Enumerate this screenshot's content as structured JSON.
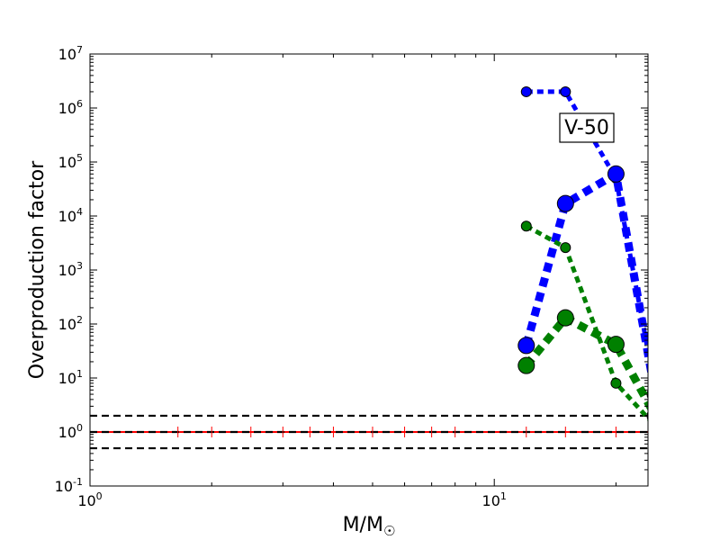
{
  "chart_data": {
    "type": "line",
    "x_scale": "log",
    "y_scale": "log",
    "xlim": [
      1,
      24
    ],
    "ylim": [
      0.1,
      10000000
    ],
    "xlabel": "M/M",
    "xlabel_sub": "☉",
    "ylabel": "Overproduction factor",
    "x_ticks": [
      {
        "value": 1,
        "base": "10",
        "exp": "0"
      },
      {
        "value": 10,
        "base": "10",
        "exp": "1"
      }
    ],
    "y_ticks": [
      {
        "value": 0.1,
        "base": "10",
        "exp": "-1"
      },
      {
        "value": 1,
        "base": "10",
        "exp": "0"
      },
      {
        "value": 10,
        "base": "10",
        "exp": "1"
      },
      {
        "value": 100,
        "base": "10",
        "exp": "2"
      },
      {
        "value": 1000,
        "base": "10",
        "exp": "3"
      },
      {
        "value": 10000,
        "base": "10",
        "exp": "4"
      },
      {
        "value": 100000,
        "base": "10",
        "exp": "5"
      },
      {
        "value": 1000000,
        "base": "10",
        "exp": "6"
      },
      {
        "value": 10000000,
        "base": "10",
        "exp": "7"
      }
    ],
    "annotation": "V-50",
    "reference_lines": [
      {
        "y": 2,
        "color": "#000000",
        "dash": "dashed"
      },
      {
        "y": 1,
        "color": "#ff0000",
        "dash": "solid"
      },
      {
        "y": 1,
        "color": "#000000",
        "dash": "dashed"
      },
      {
        "y": 0.5,
        "color": "#000000",
        "dash": "dashed"
      }
    ],
    "red_markers_x": [
      1.65,
      2,
      2.5,
      3,
      3.5,
      4,
      5,
      6,
      7,
      8,
      12,
      15,
      20
    ],
    "series": [
      {
        "color": "#0000ff",
        "marker": "small",
        "x": [
          12,
          15,
          20,
          25
        ],
        "y": [
          2000000,
          2000000,
          50000,
          6
        ]
      },
      {
        "color": "#0000ff",
        "marker": "large",
        "x": [
          12,
          15,
          20,
          25
        ],
        "y": [
          40,
          17000,
          60000,
          5
        ]
      },
      {
        "color": "#008000",
        "marker": "small",
        "x": [
          12,
          15,
          20,
          25
        ],
        "y": [
          6500,
          2600,
          8,
          1.3
        ]
      },
      {
        "color": "#008000",
        "marker": "large",
        "x": [
          12,
          15,
          20,
          25
        ],
        "y": [
          17,
          130,
          42,
          2
        ]
      }
    ]
  }
}
